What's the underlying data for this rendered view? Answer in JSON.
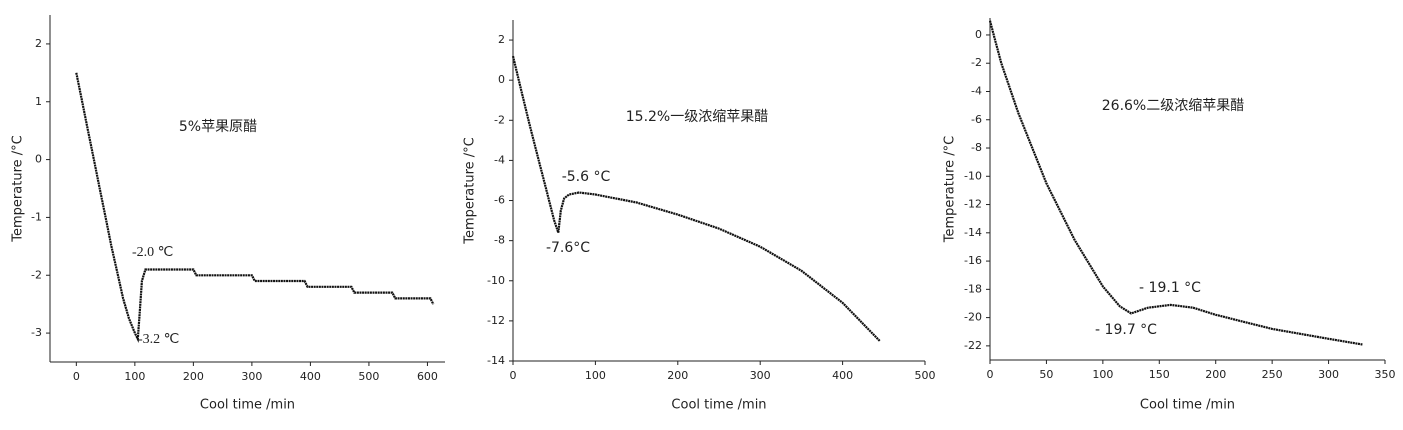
{
  "chart_data": [
    {
      "type": "line",
      "annotations": [
        "5%苹果原醋",
        "-2.0 ℃",
        "-3.2 ℃"
      ],
      "x_label": "Cool time /min",
      "y_label": "Temperature /°C",
      "x": [
        0,
        10,
        20,
        30,
        40,
        50,
        60,
        70,
        80,
        90,
        100,
        105,
        108,
        112,
        118,
        200,
        205,
        300,
        305,
        390,
        395,
        470,
        475,
        540,
        545,
        605,
        610
      ],
      "values": [
        1.5,
        1.0,
        0.5,
        0,
        -0.5,
        -1.0,
        -1.5,
        -1.95,
        -2.4,
        -2.75,
        -3.0,
        -3.1,
        -2.7,
        -2.1,
        -1.9,
        -1.9,
        -2.0,
        -2.0,
        -2.1,
        -2.1,
        -2.2,
        -2.2,
        -2.3,
        -2.3,
        -2.4,
        -2.4,
        -2.5
      ],
      "color": "#111111",
      "xlim": [
        -45,
        630
      ],
      "xticks": [
        0,
        100,
        200,
        300,
        400,
        500,
        600
      ],
      "ylim": [
        -3.5,
        2.5
      ],
      "yticks": [
        -3,
        -2,
        -1,
        0,
        1,
        2
      ]
    },
    {
      "type": "line",
      "annotations": [
        "15.2%一级浓缩苹果醋",
        "-5.6 °C",
        "-7.6°C"
      ],
      "x_label": "Cool time /min",
      "y_label": "Temperature /°C",
      "x": [
        0,
        10,
        20,
        30,
        40,
        50,
        55,
        58,
        62,
        68,
        80,
        100,
        150,
        200,
        250,
        300,
        350,
        400,
        445
      ],
      "values": [
        1.2,
        -0.5,
        -2.2,
        -3.8,
        -5.4,
        -7.0,
        -7.6,
        -6.5,
        -5.9,
        -5.7,
        -5.6,
        -5.7,
        -6.1,
        -6.7,
        -7.4,
        -8.3,
        -9.5,
        -11.1,
        -13.0
      ],
      "color": "#111111",
      "xlim": [
        0,
        500
      ],
      "xticks": [
        0,
        100,
        200,
        300,
        400,
        500
      ],
      "ylim": [
        -14,
        3
      ],
      "yticks": [
        -14,
        -12,
        -10,
        -8,
        -6,
        -4,
        -2,
        0,
        2
      ]
    },
    {
      "type": "line",
      "annotations": [
        "26.6%二级浓缩苹果醋",
        "- 19.1 °C",
        "- 19.7 °C"
      ],
      "x_label": "Cool time /min",
      "y_label": "Temperature /°C",
      "x": [
        0,
        5,
        10,
        25,
        50,
        75,
        100,
        115,
        125,
        140,
        160,
        180,
        200,
        250,
        300,
        330
      ],
      "values": [
        1.0,
        -0.5,
        -2.0,
        -5.5,
        -10.5,
        -14.5,
        -17.8,
        -19.2,
        -19.7,
        -19.3,
        -19.1,
        -19.3,
        -19.8,
        -20.8,
        -21.5,
        -21.9
      ],
      "color": "#111111",
      "xlim": [
        0,
        350
      ],
      "xticks": [
        0,
        50,
        100,
        150,
        200,
        250,
        300,
        350
      ],
      "ylim": [
        -23,
        1.2
      ],
      "yticks": [
        -22,
        -20,
        -18,
        -16,
        -14,
        -12,
        -10,
        -8,
        -6,
        -4,
        -2,
        0
      ]
    }
  ]
}
